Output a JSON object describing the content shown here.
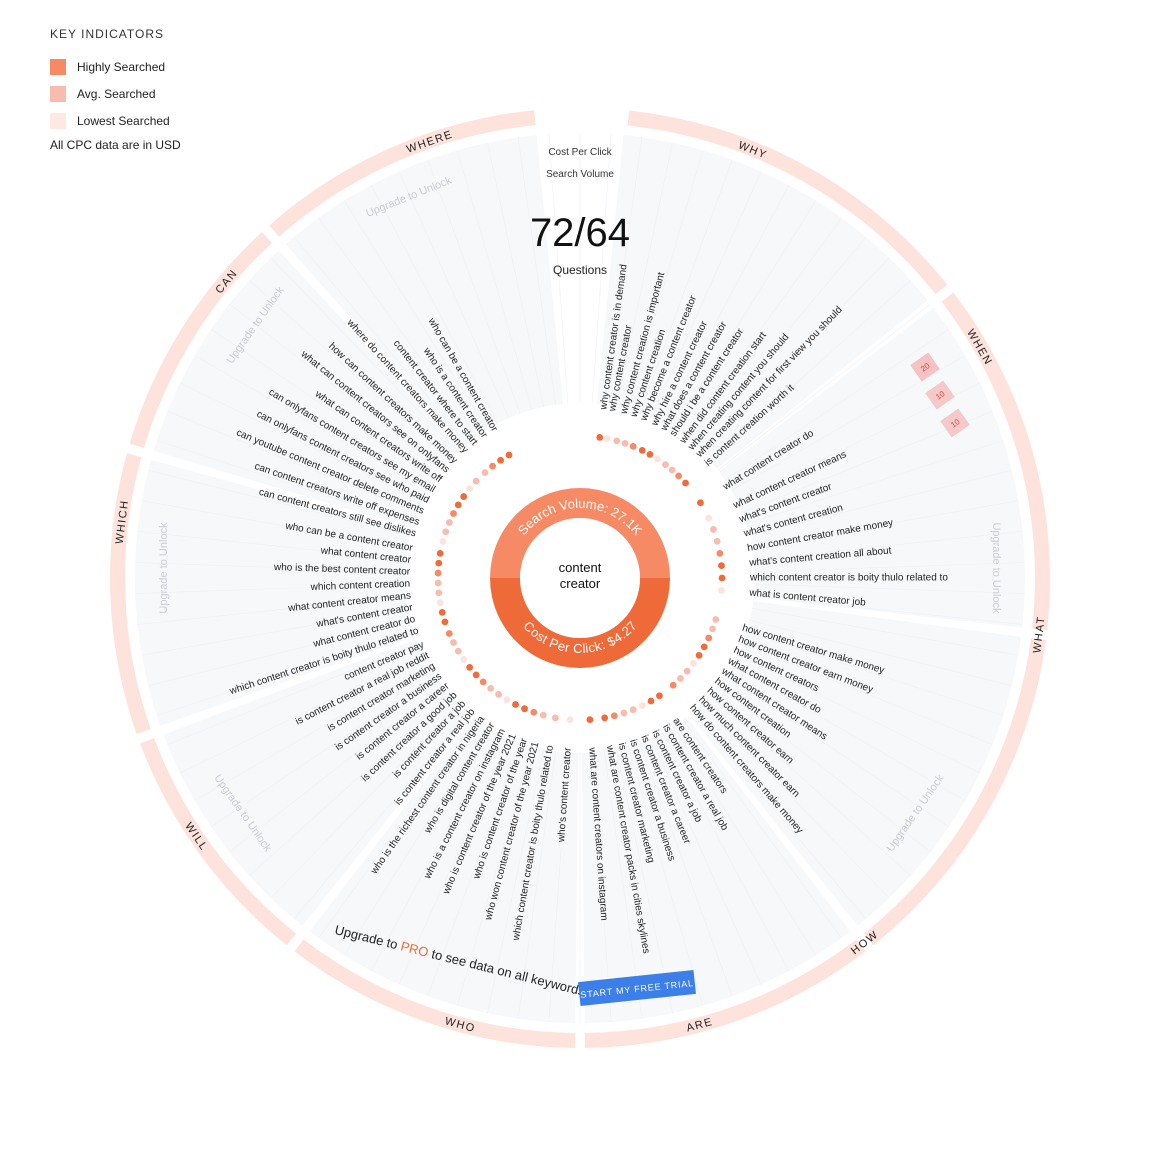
{
  "legend": {
    "title": "KEY INDICATORS",
    "items": [
      {
        "label": "Highly Searched",
        "color": "#f58a64"
      },
      {
        "label": "Avg. Searched",
        "color": "#f8bcae"
      },
      {
        "label": "Lowest Searched",
        "color": "#fde8e2"
      }
    ],
    "note": "All CPC data are in USD"
  },
  "header": {
    "cpc_label": "Cost Per Click",
    "sv_label": "Search Volume",
    "count": "72/64",
    "count_label": "Questions"
  },
  "hub": {
    "keyword_line1": "content",
    "keyword_line2": "creator",
    "search_volume_text": "Search Volume: 27.1K",
    "cpc_text": "Cost Per Click: $4.27",
    "sv_color": "#f58a64",
    "cpc_color": "#ee6a38"
  },
  "sectors": [
    "WHY",
    "WHEN",
    "WHAT",
    "HOW",
    "ARE",
    "WHO",
    "WILL",
    "WHICH",
    "CAN",
    "WHERE"
  ],
  "upgrade_text": "Upgrade to Unlock",
  "upgrade_banner": {
    "prefix": "Upgrade to ",
    "pro": "PRO",
    "suffix": " to see data on all keywords"
  },
  "cta_button": "START MY FREE TRIAL",
  "when_values": [
    "20",
    "10",
    "10"
  ],
  "questions": [
    {
      "text": "why content creator is in demand",
      "angle": 8,
      "side": "right"
    },
    {
      "text": "why content creator",
      "angle": 11,
      "side": "right"
    },
    {
      "text": "why content creation is important",
      "angle": 15,
      "side": "right"
    },
    {
      "text": "why content creation",
      "angle": 18.5,
      "side": "right"
    },
    {
      "text": "why become a content creator",
      "angle": 22,
      "side": "right"
    },
    {
      "text": "why hire a content creator",
      "angle": 26,
      "side": "right"
    },
    {
      "text": "what does a content creator",
      "angle": 29.5,
      "side": "right"
    },
    {
      "text": "should i be a content creator",
      "angle": 33,
      "side": "right"
    },
    {
      "text": "when did content creation start",
      "angle": 37,
      "side": "right"
    },
    {
      "text": "when creating content you should",
      "angle": 40.5,
      "side": "right"
    },
    {
      "text": "when creating content for first view you should",
      "angle": 44,
      "side": "right"
    },
    {
      "text": "is content creation worth it",
      "angle": 48,
      "side": "right"
    },
    {
      "text": "what content creator do",
      "angle": 58,
      "side": "right"
    },
    {
      "text": "what content creator means",
      "angle": 65,
      "side": "right"
    },
    {
      "text": "what's content creator",
      "angle": 70,
      "side": "right"
    },
    {
      "text": "what's content creation",
      "angle": 75,
      "side": "right"
    },
    {
      "text": "how content creator make money",
      "angle": 80,
      "side": "right"
    },
    {
      "text": "what's content creation all about",
      "angle": 85,
      "side": "right"
    },
    {
      "text": "which content creator is boity thulo related to",
      "angle": 90,
      "side": "right"
    },
    {
      "text": "what is content creator job",
      "angle": 95,
      "side": "right"
    },
    {
      "text": "how content creator make money",
      "angle": 107,
      "side": "right"
    },
    {
      "text": "how content creator earn money",
      "angle": 111,
      "side": "right"
    },
    {
      "text": "how content creators",
      "angle": 115,
      "side": "right"
    },
    {
      "text": "what content creator do",
      "angle": 119,
      "side": "right"
    },
    {
      "text": "what content creator means",
      "angle": 123,
      "side": "right"
    },
    {
      "text": "how content creation",
      "angle": 127,
      "side": "right"
    },
    {
      "text": "how content creator earn",
      "angle": 131,
      "side": "right"
    },
    {
      "text": "how much content creator earn",
      "angle": 135,
      "side": "right"
    },
    {
      "text": "how do content creators make money",
      "angle": 139,
      "side": "right"
    },
    {
      "text": "are content creators",
      "angle": 146,
      "side": "right"
    },
    {
      "text": "is content creator a real job",
      "angle": 150,
      "side": "right"
    },
    {
      "text": "is content creator a job",
      "angle": 154,
      "side": "right"
    },
    {
      "text": "is content creator a career",
      "angle": 158,
      "side": "right"
    },
    {
      "text": "is content creator a business",
      "angle": 162,
      "side": "right"
    },
    {
      "text": "is content creator marketing",
      "angle": 166,
      "side": "right"
    },
    {
      "text": "what are content creator packs in cities skylines",
      "angle": 170,
      "side": "right"
    },
    {
      "text": "what are content creators on instagram",
      "angle": 176,
      "side": "right"
    },
    {
      "text": "who's content creator",
      "angle": 184,
      "side": "left"
    },
    {
      "text": "which content creator is boity thulo related to",
      "angle": 190,
      "side": "left"
    },
    {
      "text": "who won content creator of the year 2021",
      "angle": 195,
      "side": "left"
    },
    {
      "text": "who is content creator of the year",
      "angle": 199,
      "side": "left"
    },
    {
      "text": "who is content creator of the year 2021",
      "angle": 203,
      "side": "left"
    },
    {
      "text": "who is a content creator on instagram",
      "angle": 207,
      "side": "left"
    },
    {
      "text": "who is digital content creator",
      "angle": 211,
      "side": "left"
    },
    {
      "text": "who is the richest content creator in nigeria",
      "angle": 215,
      "side": "left"
    },
    {
      "text": "is content creator a real job",
      "angle": 219,
      "side": "left"
    },
    {
      "text": "is content creator a job",
      "angle": 223,
      "side": "left"
    },
    {
      "text": "is content creator a good job",
      "angle": 227,
      "side": "left"
    },
    {
      "text": "is content creator a career",
      "angle": 231,
      "side": "left"
    },
    {
      "text": "is content creator a business",
      "angle": 235,
      "side": "left"
    },
    {
      "text": "is content creator marketing",
      "angle": 239,
      "side": "left"
    },
    {
      "text": "is content creator a real job reddit",
      "angle": 243,
      "side": "left"
    },
    {
      "text": "content creator pay",
      "angle": 247,
      "side": "left"
    },
    {
      "text": "which content creator is boity thulo related to",
      "angle": 252,
      "side": "left"
    },
    {
      "text": "what content creator do",
      "angle": 256,
      "side": "left"
    },
    {
      "text": "what's content creator",
      "angle": 260,
      "side": "left"
    },
    {
      "text": "what content creator means",
      "angle": 264,
      "side": "left"
    },
    {
      "text": "which content creation",
      "angle": 268,
      "side": "left"
    },
    {
      "text": "who is the best content creator",
      "angle": 272,
      "side": "left"
    },
    {
      "text": "what content creator",
      "angle": 276,
      "side": "left"
    },
    {
      "text": "who can be a content creator",
      "angle": 280,
      "side": "left"
    },
    {
      "text": "can content creators still see dislikes",
      "angle": 285,
      "side": "left"
    },
    {
      "text": "can content creators write off expenses",
      "angle": 289,
      "side": "left"
    },
    {
      "text": "can youtube content creator delete comments",
      "angle": 293,
      "side": "left"
    },
    {
      "text": "can onlyfans content creators see who paid",
      "angle": 297,
      "side": "left"
    },
    {
      "text": "can onlyfans content creators see my email",
      "angle": 301,
      "side": "left"
    },
    {
      "text": "what can content creators write off",
      "angle": 305,
      "side": "left"
    },
    {
      "text": "what can content creators see on onlyfans",
      "angle": 309,
      "side": "left"
    },
    {
      "text": "how can content creators make money",
      "angle": 313,
      "side": "left"
    },
    {
      "text": "where do content creators make money",
      "angle": 318,
      "side": "left"
    },
    {
      "text": "content creator where to start",
      "angle": 322,
      "side": "left"
    },
    {
      "text": "who is a content creator",
      "angle": 326,
      "side": "left"
    },
    {
      "text": "who can be a content creator",
      "angle": 330,
      "side": "left"
    }
  ]
}
